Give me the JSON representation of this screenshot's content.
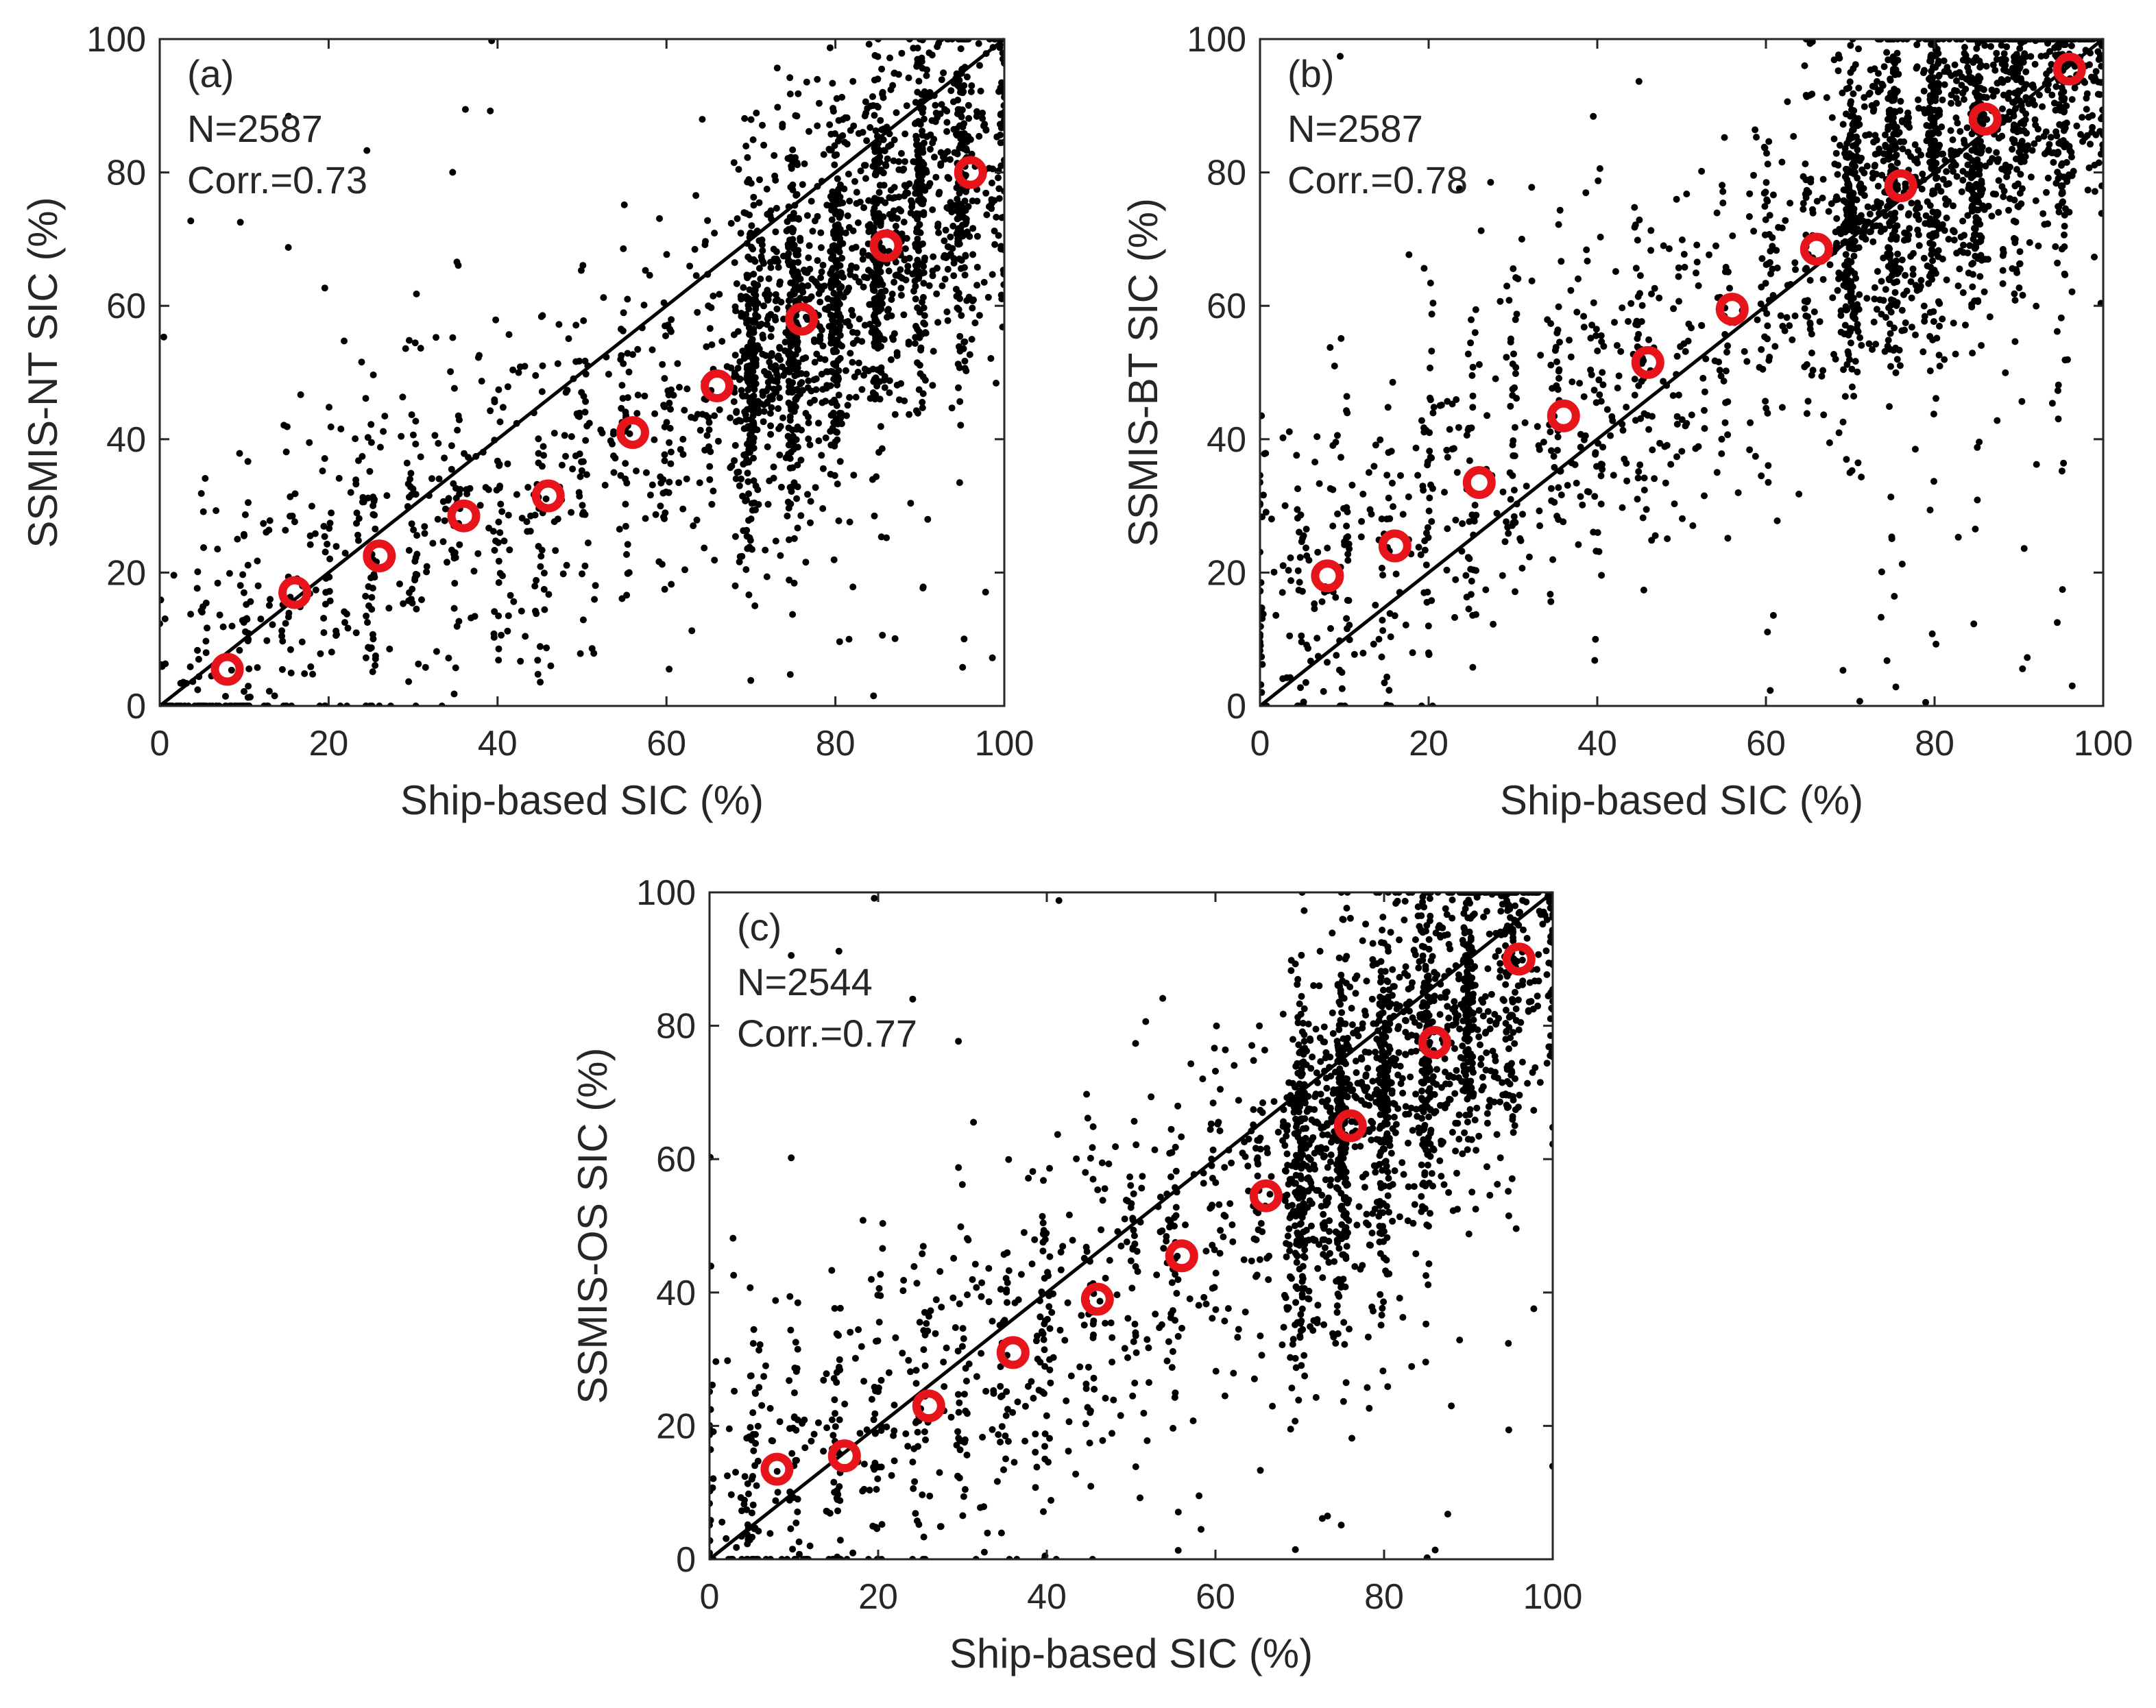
{
  "chart_data": [
    {
      "type": "scatter",
      "panel_label": "(a)",
      "n_text": "N=2587",
      "corr_text": "Corr.=0.73",
      "xlabel": "Ship-based SIC (%)",
      "ylabel": "SSMIS-NT SIC (%)",
      "xlim": [
        0,
        100
      ],
      "ylim": [
        0,
        100
      ],
      "xticks": [
        "0",
        "20",
        "40",
        "60",
        "80",
        "100"
      ],
      "yticks": [
        "0",
        "20",
        "40",
        "60",
        "80",
        "100"
      ],
      "grid": false,
      "reference_line": {
        "x": [
          0,
          100
        ],
        "y": [
          0,
          100
        ]
      },
      "n_points": 2587,
      "corr": 0.73,
      "series": [
        {
          "name": "bin means",
          "x": [
            8,
            16,
            26,
            36,
            46,
            56,
            66,
            76,
            86,
            96
          ],
          "y": [
            5.5,
            17,
            22.5,
            28.5,
            31.5,
            41,
            48,
            58,
            69,
            80
          ]
        }
      ]
    },
    {
      "type": "scatter",
      "panel_label": "(b)",
      "n_text": "N=2587",
      "corr_text": "Corr.=0.78",
      "xlabel": "Ship-based SIC (%)",
      "ylabel": "SSMIS-BT SIC (%)",
      "xlim": [
        0,
        100
      ],
      "ylim": [
        0,
        100
      ],
      "xticks": [
        "0",
        "20",
        "40",
        "60",
        "80",
        "100"
      ],
      "yticks": [
        "0",
        "20",
        "40",
        "60",
        "80",
        "100"
      ],
      "grid": false,
      "reference_line": {
        "x": [
          0,
          100
        ],
        "y": [
          0,
          100
        ]
      },
      "n_points": 2587,
      "corr": 0.78,
      "series": [
        {
          "name": "bin means",
          "x": [
            8,
            16,
            26,
            36,
            46,
            56,
            66,
            76,
            86,
            96
          ],
          "y": [
            19.5,
            24,
            33.5,
            43.5,
            51.5,
            59.5,
            68.5,
            78,
            88,
            95.5
          ]
        }
      ]
    },
    {
      "type": "scatter",
      "panel_label": "(c)",
      "n_text": "N=2544",
      "corr_text": "Corr.=0.77",
      "xlabel": "Ship-based SIC (%)",
      "ylabel": "SSMIS-OS SIC (%)",
      "xlim": [
        0,
        100
      ],
      "ylim": [
        0,
        100
      ],
      "xticks": [
        "0",
        "20",
        "40",
        "60",
        "80",
        "100"
      ],
      "yticks": [
        "0",
        "20",
        "40",
        "60",
        "80",
        "100"
      ],
      "grid": false,
      "reference_line": {
        "x": [
          0,
          100
        ],
        "y": [
          0,
          100
        ]
      },
      "n_points": 2544,
      "corr": 0.77,
      "series": [
        {
          "name": "bin means",
          "x": [
            8,
            16,
            26,
            36,
            46,
            56,
            66,
            76,
            86,
            96
          ],
          "y": [
            13.5,
            15.5,
            23,
            31,
            39,
            45.5,
            54.5,
            65,
            77.5,
            90
          ]
        }
      ]
    }
  ],
  "colors": {
    "scatter_points": "#000000",
    "bin_means": "#e8141b",
    "axes": "#262626"
  }
}
